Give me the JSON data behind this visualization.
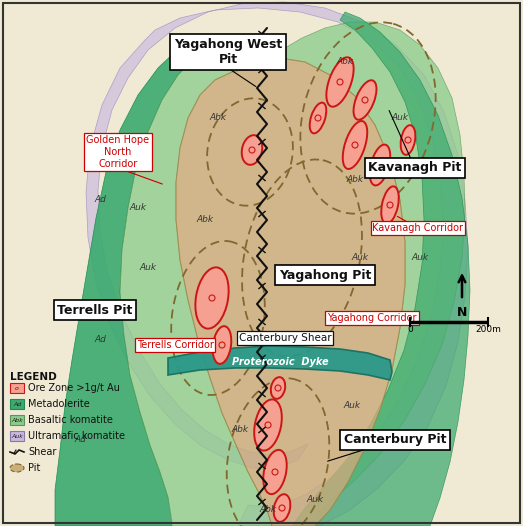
{
  "background_color": "#f5f0e0",
  "map_bg": "#f0ead5",
  "colors": {
    "metadolerite": "#3aaa6e",
    "basaltic_komatite": "#8acc8a",
    "ultramafic_komatite": "#c8b8e0",
    "central_body": "#c8aa78",
    "ore_zone_fill": "#f5a090",
    "ore_zone_edge": "#cc1515",
    "proterozoic_dyke": "#2a9888",
    "shear_color": "#111111"
  },
  "labels": {
    "yagahong_west_pit": "Yagahong West\nPit",
    "kavanagh_pit": "Kavanagh Pit",
    "terrells_pit": "Terrells Pit",
    "yagahong_pit": "Yagahong Pit",
    "canterbury_pit": "Canterbury Pit",
    "golden_hope": "Golden Hope\nNorth\nCorridor",
    "kavanagh_corridor": "Kavanagh Corridor",
    "yagahong_corridor": "Yagahong Corridor",
    "terrells_corridor": "Terrells Corridor",
    "canterbury_shear": "Canterbury Shear",
    "proterozoic_dyke": "Proterozoic  Dyke"
  }
}
